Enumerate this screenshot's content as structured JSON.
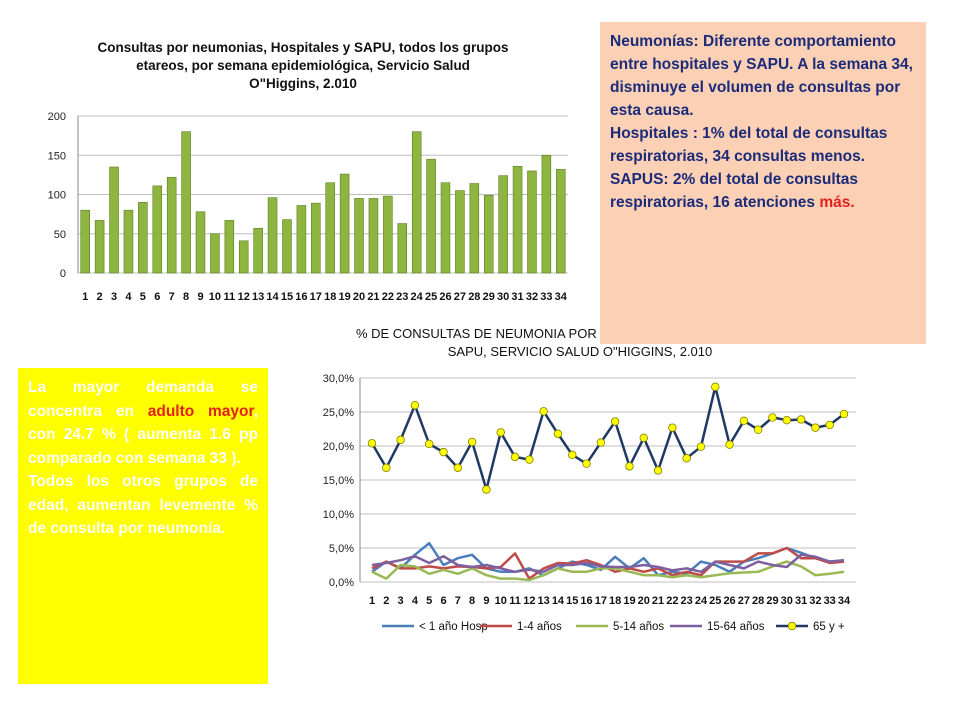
{
  "chart_data": [
    {
      "type": "bar",
      "title_lines": [
        "Consultas por neumonias, Hospitales y SAPU, todos los grupos",
        "etareos, por semana epidemiológica, Servicio Salud",
        "O\"Higgins, 2.010"
      ],
      "categories": [
        "1",
        "2",
        "3",
        "4",
        "5",
        "6",
        "7",
        "8",
        "9",
        "10",
        "11",
        "12",
        "13",
        "14",
        "15",
        "16",
        "17",
        "18",
        "19",
        "20",
        "21",
        "22",
        "23",
        "24",
        "25",
        "26",
        "27",
        "28",
        "29",
        "30",
        "31",
        "32",
        "33",
        "34"
      ],
      "values": [
        80,
        67,
        135,
        80,
        90,
        111,
        122,
        180,
        78,
        50,
        67,
        41,
        57,
        96,
        68,
        86,
        89,
        115,
        126,
        95,
        95,
        98,
        63,
        180,
        145,
        115,
        105,
        114,
        99,
        124,
        136,
        130,
        150,
        132
      ],
      "yticks": [
        "0",
        "50",
        "100",
        "150",
        "200"
      ],
      "ylim": [
        0,
        200
      ],
      "grid": true,
      "bar_color": "#8db53f"
    },
    {
      "type": "line",
      "title_lines": [
        "%  DE CONSULTAS DE NEUMONIA POR GRUPO ETAREO, HOSPITALES Y",
        "SAPU, SERVICIO SALUD O\"HIGGINS, 2.010"
      ],
      "categories": [
        "1",
        "2",
        "3",
        "4",
        "5",
        "6",
        "7",
        "8",
        "9",
        "10",
        "11",
        "12",
        "13",
        "14",
        "15",
        "16",
        "17",
        "18",
        "19",
        "20",
        "21",
        "22",
        "23",
        "24",
        "25",
        "26",
        "27",
        "28",
        "29",
        "30",
        "31",
        "32",
        "33",
        "34"
      ],
      "yticks": [
        "0,0%",
        "5,0%",
        "10,0%",
        "15,0%",
        "20,0%",
        "25,0%",
        "30,0%"
      ],
      "ylim": [
        0,
        30
      ],
      "grid": true,
      "legend_position": "bottom",
      "series": [
        {
          "name": "< 1 año Hosp",
          "color": "#4a7ebb",
          "marker": false,
          "values": [
            1.5,
            3.0,
            2.0,
            4.0,
            5.7,
            2.5,
            3.5,
            4.0,
            2.0,
            1.5,
            1.5,
            2.0,
            1.0,
            2.0,
            3.0,
            2.5,
            1.8,
            3.7,
            2.0,
            3.5,
            1.0,
            1.5,
            1.2,
            3.0,
            2.5,
            1.5,
            3.0,
            3.5,
            4.2,
            5.0,
            4.3,
            3.5,
            3.0,
            3.2
          ]
        },
        {
          "name": "1-4 años",
          "color": "#be4b48",
          "marker": false,
          "values": [
            2.0,
            3.0,
            2.0,
            2.0,
            2.3,
            2.0,
            2.3,
            2.2,
            2.0,
            2.2,
            4.2,
            0.5,
            2.0,
            2.8,
            2.7,
            3.2,
            2.5,
            1.5,
            2.0,
            1.5,
            2.0,
            1.0,
            1.5,
            1.0,
            3.0,
            3.0,
            3.0,
            4.2,
            4.2,
            5.0,
            3.5,
            3.5,
            2.8,
            3.0
          ]
        },
        {
          "name": "5-14 años",
          "color": "#98b954",
          "marker": false,
          "values": [
            1.5,
            0.5,
            2.5,
            2.3,
            1.2,
            1.8,
            1.2,
            2.0,
            1.0,
            0.5,
            0.5,
            0.3,
            1.0,
            2.0,
            1.5,
            1.5,
            2.0,
            2.0,
            1.5,
            1.0,
            1.0,
            0.7,
            1.0,
            0.7,
            1.0,
            1.3,
            1.4,
            1.5,
            2.3,
            3.0,
            2.3,
            1.0,
            1.2,
            1.5
          ]
        },
        {
          "name": "15-64 años",
          "color": "#7d60a0",
          "marker": false,
          "values": [
            2.5,
            2.8,
            3.2,
            3.8,
            2.8,
            3.8,
            2.5,
            2.2,
            2.5,
            2.0,
            1.5,
            1.8,
            1.5,
            2.5,
            2.5,
            2.8,
            2.3,
            2.2,
            2.2,
            2.5,
            2.2,
            1.7,
            2.0,
            1.5,
            3.0,
            2.5,
            2.0,
            3.0,
            2.5,
            2.2,
            4.0,
            3.7,
            3.0,
            3.2
          ]
        },
        {
          "name": "65 y +",
          "color": "#1f3864",
          "marker": true,
          "marker_color": "#ffff00",
          "values": [
            20.4,
            16.8,
            20.9,
            26.0,
            20.3,
            19.1,
            16.8,
            20.6,
            13.6,
            22.0,
            18.4,
            18.0,
            25.1,
            21.8,
            18.7,
            17.4,
            20.5,
            23.6,
            17.0,
            21.2,
            16.4,
            22.7,
            18.2,
            19.9,
            28.7,
            20.2,
            23.7,
            22.4,
            24.2,
            23.8,
            23.9,
            22.7,
            23.1,
            24.7
          ]
        }
      ]
    }
  ],
  "note_panel": {
    "lines": [
      "Neumonías: Diferente comportamiento entre hospitales y SAPU.  A la semana 34, disminuye el volumen de consultas por esta causa.",
      "Hospitales : 1% del total de consultas respiratorias, 34 consultas menos."
    ],
    "sapus_text": "SAPUS:  2% del total de consultas respiratorias, 16 atenciones ",
    "sapus_highlight": "más.",
    "background": "#fbd0b4",
    "text_color": "#1b2b7a"
  },
  "left_panel": {
    "intro": "La mayor demanda se concentra en ",
    "highlight": "adulto mayor",
    "rest": ", con 24.7 % ( aumenta 1.6 pp comparado con semana 33 ).",
    "second": "Todos los otros grupos de edad, aumentan levemente % de consulta por neumonía.",
    "background": "#ffff00"
  }
}
